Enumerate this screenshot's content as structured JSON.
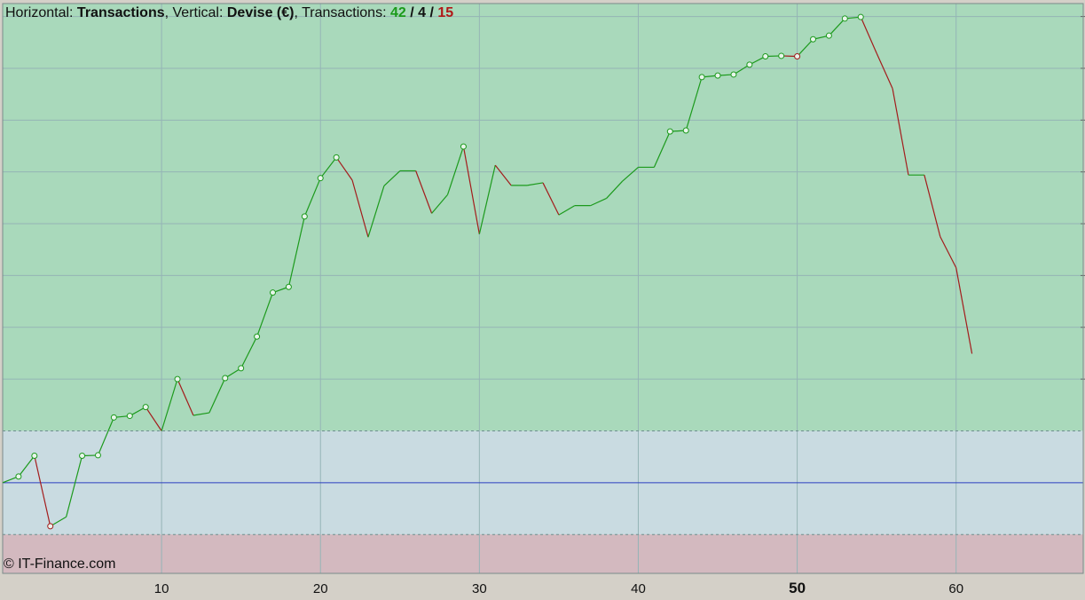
{
  "header": {
    "h_label": "Horizontal: ",
    "h_value": "Transactions",
    "v_label": ", Vertical: ",
    "v_value": "Devise (€)",
    "t_label": ", Transactions: ",
    "t_win": "42",
    "sep1": " / ",
    "t_flat": "4",
    "sep2": " / ",
    "t_loss": "15"
  },
  "copyright": "© IT-Finance.com",
  "colors": {
    "profit_zone": "#a9d9bb",
    "neutral_zone": "#c9dbe1",
    "loss_zone": "#d3b9bf",
    "up_line": "#1c9a1c",
    "down_line": "#a31c1c",
    "baseline": "#2a3dbf",
    "grid": "#95b4b6"
  },
  "chart_data": {
    "type": "line",
    "x_ticks": [
      10,
      20,
      30,
      40,
      50,
      60
    ],
    "x_tick_labels": [
      "10",
      "20",
      "30",
      "40",
      "50",
      "60"
    ],
    "major_x_tick": 50,
    "xlim": [
      0,
      68
    ],
    "y_relative_units": true,
    "ylim": [
      -1.75,
      9.25
    ],
    "y_gridlines": [
      -1,
      0,
      1,
      2,
      3,
      4,
      5,
      6,
      7,
      8,
      9
    ],
    "baseline": 0,
    "zone_upper": 1,
    "zone_lower": -1,
    "series": [
      {
        "x": [
          0,
          1,
          2,
          3,
          4,
          5,
          6,
          7,
          8,
          9,
          10,
          11,
          12,
          13,
          14,
          15,
          16,
          17,
          18,
          19,
          20,
          21,
          22,
          23,
          24,
          25,
          26,
          27,
          28,
          29,
          30,
          31,
          32,
          33,
          34,
          35,
          36,
          37,
          38,
          39,
          40,
          41,
          42,
          43,
          44,
          45,
          46,
          47,
          48,
          49,
          50,
          51,
          52,
          53,
          54,
          55,
          56,
          57,
          58,
          59,
          60,
          61
        ],
        "values": [
          0.0,
          0.12,
          0.52,
          -0.84,
          -0.66,
          0.52,
          0.53,
          1.26,
          1.29,
          1.46,
          1.0,
          2.0,
          1.3,
          1.35,
          2.02,
          2.21,
          2.82,
          3.67,
          3.78,
          5.14,
          5.88,
          6.28,
          5.84,
          4.74,
          5.73,
          6.02,
          6.02,
          5.2,
          5.56,
          6.49,
          4.8,
          6.13,
          5.74,
          5.74,
          5.79,
          5.17,
          5.35,
          5.35,
          5.49,
          5.82,
          6.09,
          6.09,
          6.78,
          6.8,
          7.83,
          7.86,
          7.88,
          8.07,
          8.23,
          8.24,
          8.23,
          8.56,
          8.63,
          8.96,
          8.99,
          8.29,
          7.61,
          5.94,
          5.94,
          4.75,
          4.15,
          2.49
        ],
        "markers": [
          1,
          2,
          3,
          5,
          6,
          7,
          8,
          9,
          11,
          14,
          15,
          16,
          17,
          18,
          19,
          20,
          21,
          29,
          42,
          43,
          44,
          45,
          46,
          47,
          48,
          49,
          50,
          51,
          52,
          53,
          54
        ]
      }
    ]
  }
}
